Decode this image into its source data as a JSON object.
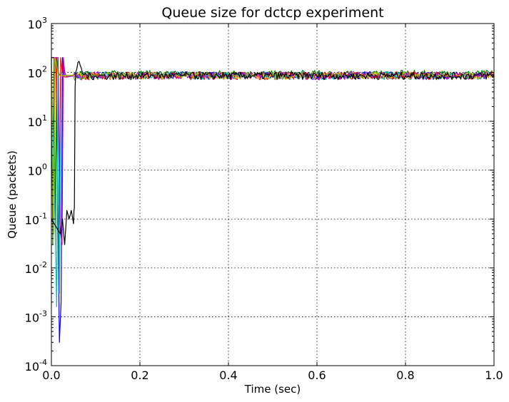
{
  "chart_data": {
    "type": "line",
    "title": "Queue size for dctcp experiment",
    "xlabel": "Time (sec)",
    "ylabel": "Queue (packets)",
    "xlim": [
      0.0,
      1.0
    ],
    "ylim": [
      0.0001,
      1000
    ],
    "yscale": "log",
    "grid": true,
    "legend": "none",
    "x_ticks": [
      {
        "value": 0.0,
        "label": "0.0"
      },
      {
        "value": 0.2,
        "label": "0.2"
      },
      {
        "value": 0.4,
        "label": "0.4"
      },
      {
        "value": 0.6,
        "label": "0.6"
      },
      {
        "value": 0.8,
        "label": "0.8"
      },
      {
        "value": 1.0,
        "label": "1.0"
      }
    ],
    "y_ticks": [
      {
        "value": 0.0001,
        "base": "10",
        "exp": "-4"
      },
      {
        "value": 0.001,
        "base": "10",
        "exp": "-3"
      },
      {
        "value": 0.01,
        "base": "10",
        "exp": "-2"
      },
      {
        "value": 0.1,
        "base": "10",
        "exp": "-1"
      },
      {
        "value": 1,
        "base": "10",
        "exp": "0"
      },
      {
        "value": 10,
        "base": "10",
        "exp": "1"
      },
      {
        "value": 100,
        "base": "10",
        "exp": "2"
      },
      {
        "value": 1000,
        "base": "10",
        "exp": "3"
      }
    ],
    "series": [
      {
        "color": "#0000ff",
        "x": [
          0.0,
          0.01,
          0.014,
          0.018,
          0.022,
          0.025,
          0.028,
          0.03,
          0.05,
          0.1,
          0.2,
          0.3,
          0.4,
          0.5,
          0.6,
          0.7,
          0.8,
          0.9,
          1.0
        ],
        "y": [
          200,
          200,
          0.5,
          0.0003,
          0.002,
          200,
          100,
          85,
          85,
          88,
          85,
          90,
          85,
          88,
          85,
          90,
          86,
          88,
          86
        ]
      },
      {
        "color": "#008000",
        "x": [
          0.0,
          0.003,
          0.006,
          0.009,
          0.012,
          0.015,
          0.02,
          0.05,
          0.1,
          0.2,
          0.3,
          0.4,
          0.5,
          0.6,
          0.7,
          0.8,
          0.9,
          1.0
        ],
        "y": [
          200,
          0.03,
          200,
          0.03,
          200,
          100,
          85,
          88,
          92,
          95,
          90,
          95,
          92,
          95,
          90,
          95,
          92,
          95
        ]
      },
      {
        "color": "#ff0000",
        "x": [
          0.0,
          0.01,
          0.015,
          0.018,
          0.021,
          0.025,
          0.03,
          0.05,
          0.1,
          0.2,
          0.3,
          0.4,
          0.5,
          0.6,
          0.7,
          0.8,
          0.9,
          1.0
        ],
        "y": [
          200,
          200,
          0.08,
          0.08,
          200,
          90,
          80,
          85,
          85,
          88,
          85,
          88,
          85,
          88,
          85,
          88,
          85,
          88
        ]
      },
      {
        "color": "#00bfbf",
        "x": [
          0.0,
          0.008,
          0.012,
          0.015,
          0.018,
          0.022,
          0.03,
          0.05,
          0.1,
          0.2,
          0.3,
          0.4,
          0.5,
          0.6,
          0.7,
          0.8,
          0.9,
          1.0
        ],
        "y": [
          200,
          0.1,
          0.0016,
          200,
          0.003,
          100,
          85,
          85,
          88,
          86,
          88,
          86,
          88,
          86,
          88,
          86,
          88,
          86
        ]
      },
      {
        "color": "#bf00bf",
        "x": [
          0.0,
          0.015,
          0.02,
          0.024,
          0.027,
          0.03,
          0.035,
          0.05,
          0.1,
          0.2,
          0.3,
          0.4,
          0.5,
          0.6,
          0.7,
          0.8,
          0.9,
          1.0
        ],
        "y": [
          200,
          200,
          0.06,
          0.03,
          200,
          100,
          80,
          85,
          88,
          85,
          88,
          85,
          88,
          85,
          88,
          85,
          88,
          85
        ]
      },
      {
        "color": "#bfbf00",
        "x": [
          0.0,
          0.005,
          0.008,
          0.011,
          0.015,
          0.02,
          0.05,
          0.1,
          0.2,
          0.3,
          0.4,
          0.5,
          0.6,
          0.7,
          0.8,
          0.9,
          1.0
        ],
        "y": [
          200,
          0.05,
          200,
          150,
          90,
          85,
          88,
          86,
          88,
          86,
          88,
          86,
          88,
          86,
          88,
          86,
          88
        ]
      },
      {
        "color": "#000000",
        "x": [
          0.0,
          0.02,
          0.025,
          0.03,
          0.035,
          0.04,
          0.045,
          0.05,
          0.052,
          0.055,
          0.06,
          0.065,
          0.07,
          0.08,
          0.1,
          0.2,
          0.4,
          0.6,
          0.8,
          1.0
        ],
        "y": [
          0.1,
          0.05,
          0.1,
          0.03,
          0.15,
          0.1,
          0.15,
          0.08,
          0.17,
          100,
          160,
          140,
          100,
          85,
          85,
          86,
          86,
          86,
          86,
          86
        ]
      }
    ]
  }
}
